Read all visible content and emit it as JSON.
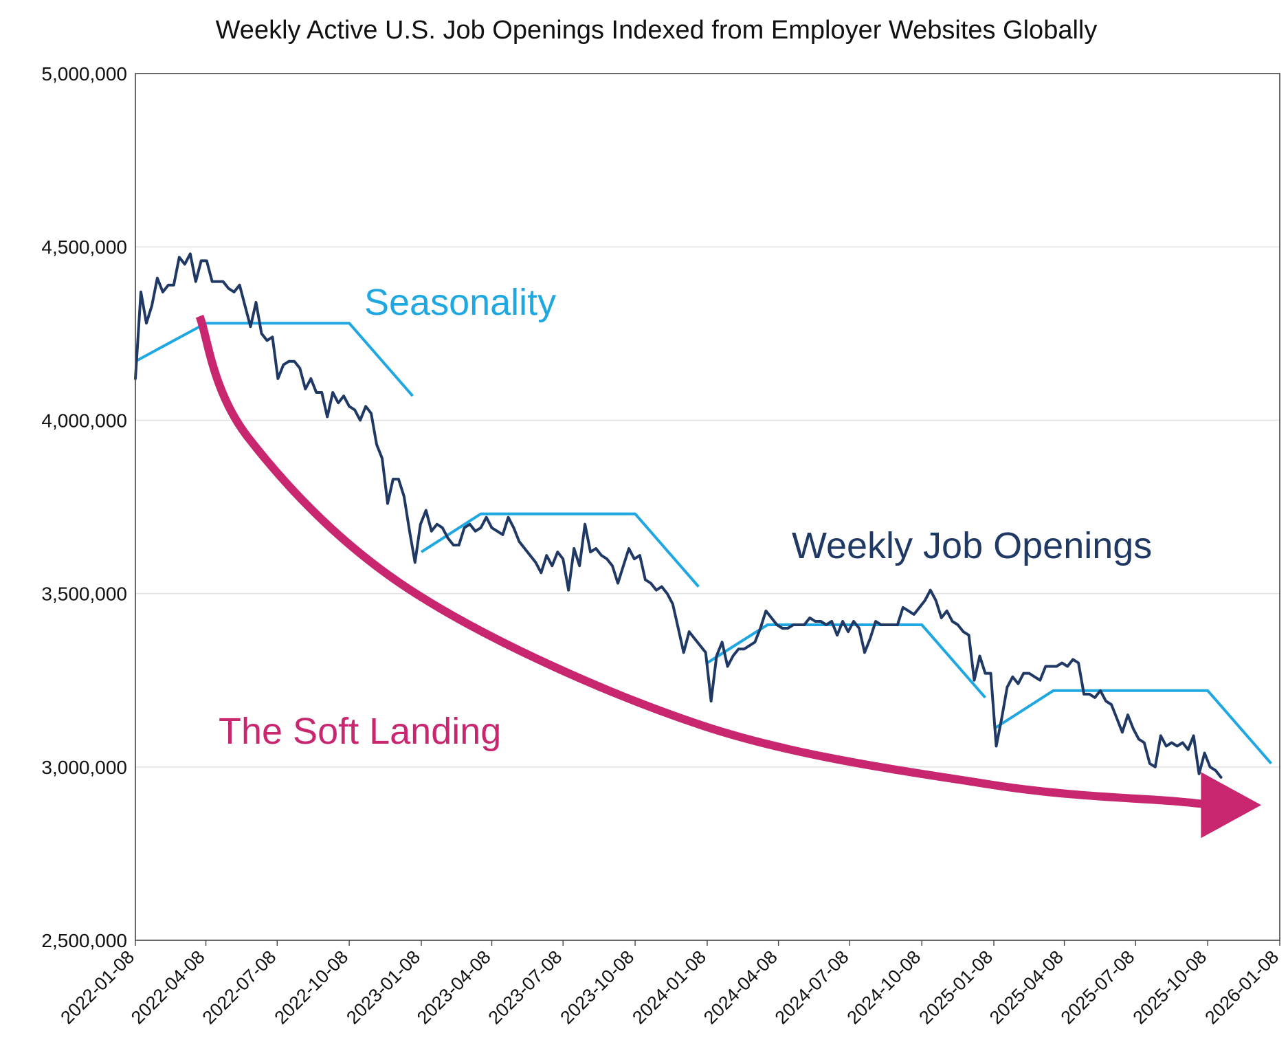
{
  "chart_data": {
    "type": "line",
    "title": "Weekly Active U.S. Job Openings Indexed from Employer Websites Globally",
    "xlabel": "",
    "ylabel": "",
    "ylim": [
      2500000,
      5000000
    ],
    "yticks": [
      2500000,
      3000000,
      3500000,
      4000000,
      4500000,
      5000000
    ],
    "ytick_labels": [
      "2,500,000",
      "3,000,000",
      "3,500,000",
      "4,000,000",
      "4,500,000",
      "5,000,000"
    ],
    "xlim": [
      "2022-01-08",
      "2026-01-08"
    ],
    "xtick_labels": [
      "2022-01-08",
      "2022-04-08",
      "2022-07-08",
      "2022-10-08",
      "2023-01-08",
      "2023-04-08",
      "2023-07-08",
      "2023-10-08",
      "2024-01-08",
      "2024-04-08",
      "2024-07-08",
      "2024-10-08",
      "2025-01-08",
      "2025-04-08",
      "2025-07-08",
      "2025-10-08",
      "2026-01-08"
    ],
    "grid": true,
    "colors": {
      "openings": "#1f3864",
      "seasonality": "#1ea7e1",
      "soft_landing": "#c8266f",
      "text": "#111111",
      "gridline": "#e2e2e2"
    },
    "annotations": {
      "seasonality": "Seasonality",
      "openings": "Weekly Job Openings",
      "soft_landing": "The Soft Landing"
    },
    "series": [
      {
        "name": "Weekly Job Openings",
        "dates": [
          "2022-01-08",
          "2022-01-15",
          "2022-01-22",
          "2022-01-29",
          "2022-02-05",
          "2022-02-12",
          "2022-02-19",
          "2022-02-26",
          "2022-03-05",
          "2022-03-12",
          "2022-03-19",
          "2022-03-26",
          "2022-04-02",
          "2022-04-09",
          "2022-04-16",
          "2022-04-23",
          "2022-04-30",
          "2022-05-07",
          "2022-05-14",
          "2022-05-21",
          "2022-05-28",
          "2022-06-04",
          "2022-06-11",
          "2022-06-18",
          "2022-06-25",
          "2022-07-02",
          "2022-07-09",
          "2022-07-16",
          "2022-07-23",
          "2022-07-30",
          "2022-08-06",
          "2022-08-13",
          "2022-08-20",
          "2022-08-27",
          "2022-09-03",
          "2022-09-10",
          "2022-09-17",
          "2022-09-24",
          "2022-10-01",
          "2022-10-08",
          "2022-10-15",
          "2022-10-22",
          "2022-10-29",
          "2022-11-05",
          "2022-11-12",
          "2022-11-19",
          "2022-11-26",
          "2022-12-03",
          "2022-12-10",
          "2022-12-17",
          "2022-12-24",
          "2022-12-31",
          "2023-01-07",
          "2023-01-14",
          "2023-01-21",
          "2023-01-28",
          "2023-02-04",
          "2023-02-11",
          "2023-02-18",
          "2023-02-25",
          "2023-03-04",
          "2023-03-11",
          "2023-03-18",
          "2023-03-25",
          "2023-04-01",
          "2023-04-08",
          "2023-04-15",
          "2023-04-22",
          "2023-04-29",
          "2023-05-06",
          "2023-05-13",
          "2023-05-20",
          "2023-05-27",
          "2023-06-03",
          "2023-06-10",
          "2023-06-17",
          "2023-06-24",
          "2023-07-01",
          "2023-07-08",
          "2023-07-15",
          "2023-07-22",
          "2023-07-29",
          "2023-08-05",
          "2023-08-12",
          "2023-08-19",
          "2023-08-26",
          "2023-09-02",
          "2023-09-09",
          "2023-09-16",
          "2023-09-23",
          "2023-09-30",
          "2023-10-07",
          "2023-10-14",
          "2023-10-21",
          "2023-10-28",
          "2023-11-04",
          "2023-11-11",
          "2023-11-18",
          "2023-11-25",
          "2023-12-02",
          "2023-12-09",
          "2023-12-16",
          "2023-12-23",
          "2023-12-30",
          "2024-01-06",
          "2024-01-13",
          "2024-01-20",
          "2024-01-27",
          "2024-02-03",
          "2024-02-10",
          "2024-02-17",
          "2024-02-24",
          "2024-03-02",
          "2024-03-09",
          "2024-03-16",
          "2024-03-23",
          "2024-03-30",
          "2024-04-06",
          "2024-04-13",
          "2024-04-20",
          "2024-04-27",
          "2024-05-04",
          "2024-05-11",
          "2024-05-18",
          "2024-05-25",
          "2024-06-01",
          "2024-06-08",
          "2024-06-15",
          "2024-06-22",
          "2024-06-29",
          "2024-07-06",
          "2024-07-13",
          "2024-07-20",
          "2024-07-27",
          "2024-08-03",
          "2024-08-10",
          "2024-08-17",
          "2024-08-24",
          "2024-08-31",
          "2024-09-07",
          "2024-09-14",
          "2024-09-21",
          "2024-09-28",
          "2024-10-05",
          "2024-10-12",
          "2024-10-19",
          "2024-10-26",
          "2024-11-02",
          "2024-11-09",
          "2024-11-16",
          "2024-11-23",
          "2024-11-30",
          "2024-12-07",
          "2024-12-14",
          "2024-12-21",
          "2024-12-28",
          "2025-01-04",
          "2025-01-11",
          "2025-01-18",
          "2025-01-25",
          "2025-02-01",
          "2025-02-08",
          "2025-02-15",
          "2025-02-22",
          "2025-03-01",
          "2025-03-08",
          "2025-03-15",
          "2025-03-22",
          "2025-03-29",
          "2025-04-05",
          "2025-04-12",
          "2025-04-19",
          "2025-04-26",
          "2025-05-03",
          "2025-05-10",
          "2025-05-17",
          "2025-05-24",
          "2025-05-31",
          "2025-06-07",
          "2025-06-14",
          "2025-06-21",
          "2025-06-28",
          "2025-07-05",
          "2025-07-12",
          "2025-07-19",
          "2025-07-26",
          "2025-08-02",
          "2025-08-09",
          "2025-08-16",
          "2025-08-23",
          "2025-08-30",
          "2025-09-06",
          "2025-09-13",
          "2025-09-20",
          "2025-09-27",
          "2025-10-04",
          "2025-10-11",
          "2025-10-18",
          "2025-10-25"
        ],
        "values": [
          4120000,
          4370000,
          4280000,
          4330000,
          4410000,
          4370000,
          4390000,
          4390000,
          4470000,
          4450000,
          4480000,
          4400000,
          4460000,
          4460000,
          4400000,
          4400000,
          4400000,
          4380000,
          4370000,
          4390000,
          4330000,
          4270000,
          4340000,
          4250000,
          4230000,
          4240000,
          4120000,
          4160000,
          4170000,
          4170000,
          4150000,
          4090000,
          4120000,
          4080000,
          4080000,
          4010000,
          4080000,
          4050000,
          4070000,
          4040000,
          4030000,
          4000000,
          4040000,
          4020000,
          3930000,
          3890000,
          3760000,
          3830000,
          3830000,
          3780000,
          3680000,
          3590000,
          3700000,
          3740000,
          3680000,
          3700000,
          3690000,
          3660000,
          3640000,
          3640000,
          3690000,
          3700000,
          3680000,
          3690000,
          3720000,
          3690000,
          3680000,
          3670000,
          3720000,
          3690000,
          3650000,
          3630000,
          3610000,
          3590000,
          3560000,
          3610000,
          3580000,
          3620000,
          3600000,
          3510000,
          3630000,
          3580000,
          3700000,
          3620000,
          3630000,
          3610000,
          3600000,
          3580000,
          3530000,
          3580000,
          3630000,
          3600000,
          3610000,
          3540000,
          3530000,
          3510000,
          3520000,
          3500000,
          3470000,
          3400000,
          3330000,
          3390000,
          3370000,
          3350000,
          3330000,
          3190000,
          3320000,
          3360000,
          3290000,
          3320000,
          3340000,
          3340000,
          3350000,
          3360000,
          3400000,
          3450000,
          3430000,
          3410000,
          3400000,
          3400000,
          3410000,
          3410000,
          3410000,
          3430000,
          3420000,
          3420000,
          3410000,
          3420000,
          3380000,
          3420000,
          3390000,
          3420000,
          3400000,
          3330000,
          3370000,
          3420000,
          3410000,
          3410000,
          3410000,
          3410000,
          3460000,
          3450000,
          3440000,
          3460000,
          3480000,
          3510000,
          3480000,
          3430000,
          3450000,
          3420000,
          3410000,
          3390000,
          3380000,
          3250000,
          3320000,
          3270000,
          3270000,
          3060000,
          3140000,
          3230000,
          3260000,
          3240000,
          3270000,
          3270000,
          3260000,
          3250000,
          3290000,
          3290000,
          3290000,
          3300000,
          3290000,
          3310000,
          3300000,
          3210000,
          3210000,
          3200000,
          3220000,
          3190000,
          3180000,
          3140000,
          3100000,
          3150000,
          3110000,
          3080000,
          3070000,
          3010000,
          3000000,
          3090000,
          3060000,
          3070000,
          3060000,
          3070000,
          3050000,
          3090000,
          2980000,
          3040000,
          3000000,
          2990000,
          2970000
        ]
      },
      {
        "name": "Seasonality",
        "segments": [
          {
            "dates": [
              "2022-01-08",
              "2022-04-08",
              "2022-10-08",
              "2022-12-28"
            ],
            "values": [
              4170000,
              4280000,
              4280000,
              4070000
            ]
          },
          {
            "dates": [
              "2023-01-08",
              "2023-03-25",
              "2023-10-08",
              "2023-12-28"
            ],
            "values": [
              3620000,
              3730000,
              3730000,
              3520000
            ]
          },
          {
            "dates": [
              "2024-01-08",
              "2024-03-25",
              "2024-10-08",
              "2024-12-28"
            ],
            "values": [
              3300000,
              3410000,
              3410000,
              3200000
            ]
          },
          {
            "dates": [
              "2025-01-08",
              "2025-03-25",
              "2025-10-08",
              "2025-12-28"
            ],
            "values": [
              3110000,
              3220000,
              3220000,
              3010000
            ]
          }
        ]
      },
      {
        "name": "The Soft Landing",
        "dates": [
          "2022-03-31",
          "2022-06-01",
          "2023-01-01",
          "2024-01-01",
          "2025-01-01",
          "2025-09-01",
          "2025-10-10"
        ],
        "values": [
          4300000,
          3950000,
          3500000,
          3120000,
          2950000,
          2900000,
          2890000
        ],
        "arrow_end": "2025-10-15",
        "arrow_end_value": 2890000
      }
    ]
  }
}
